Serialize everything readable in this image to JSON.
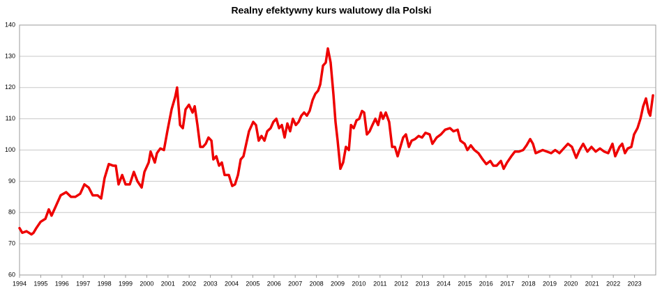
{
  "chart_data": {
    "type": "line",
    "title": "Realny efektywny kurs walutowy dla Polski",
    "xlim": [
      1994,
      2024
    ],
    "xticks": [
      1994,
      1995,
      1996,
      1997,
      1998,
      1999,
      2000,
      2001,
      2002,
      2003,
      2004,
      2005,
      2006,
      2007,
      2008,
      2009,
      2010,
      2011,
      2012,
      2013,
      2014,
      2015,
      2016,
      2017,
      2018,
      2019,
      2020,
      2021,
      2022,
      2023
    ],
    "ylim": [
      60,
      140
    ],
    "yticks": [
      60,
      70,
      80,
      90,
      100,
      110,
      120,
      130,
      140
    ],
    "grid": true,
    "series": [
      {
        "color": "#ee0000",
        "x": [
          1994.0,
          1994.13,
          1994.33,
          1994.56,
          1994.66,
          1994.79,
          1994.99,
          1995.22,
          1995.38,
          1995.51,
          1995.71,
          1995.94,
          1996.2,
          1996.43,
          1996.63,
          1996.86,
          1997.06,
          1997.26,
          1997.45,
          1997.68,
          1997.85,
          1998.01,
          1998.21,
          1998.41,
          1998.54,
          1998.67,
          1998.84,
          1999.0,
          1999.2,
          1999.39,
          1999.56,
          1999.76,
          1999.89,
          2000.09,
          2000.18,
          2000.38,
          2000.48,
          2000.64,
          2000.81,
          2000.97,
          2001.17,
          2001.34,
          2001.43,
          2001.57,
          2001.7,
          2001.83,
          2001.99,
          2002.16,
          2002.26,
          2002.39,
          2002.52,
          2002.65,
          2002.78,
          2002.91,
          2003.05,
          2003.14,
          2003.28,
          2003.41,
          2003.54,
          2003.67,
          2003.87,
          2004.03,
          2004.16,
          2004.3,
          2004.43,
          2004.56,
          2004.69,
          2004.82,
          2005.02,
          2005.15,
          2005.28,
          2005.41,
          2005.55,
          2005.68,
          2005.84,
          2005.97,
          2006.11,
          2006.24,
          2006.37,
          2006.5,
          2006.63,
          2006.76,
          2006.89,
          2007.03,
          2007.16,
          2007.29,
          2007.42,
          2007.55,
          2007.68,
          2007.82,
          2007.95,
          2008.08,
          2008.18,
          2008.31,
          2008.44,
          2008.54,
          2008.67,
          2008.8,
          2008.9,
          2009.0,
          2009.13,
          2009.26,
          2009.39,
          2009.53,
          2009.63,
          2009.76,
          2009.89,
          2010.02,
          2010.15,
          2010.25,
          2010.38,
          2010.51,
          2010.64,
          2010.78,
          2010.91,
          2011.04,
          2011.14,
          2011.27,
          2011.43,
          2011.57,
          2011.7,
          2011.83,
          2011.96,
          2012.09,
          2012.22,
          2012.36,
          2012.49,
          2012.65,
          2012.82,
          2012.98,
          2013.14,
          2013.34,
          2013.47,
          2013.67,
          2013.87,
          2014.07,
          2014.3,
          2014.46,
          2014.66,
          2014.79,
          2014.99,
          2015.12,
          2015.28,
          2015.45,
          2015.64,
          2015.84,
          2016.01,
          2016.2,
          2016.34,
          2016.5,
          2016.7,
          2016.83,
          2016.99,
          2017.19,
          2017.36,
          2017.55,
          2017.75,
          2017.91,
          2018.08,
          2018.21,
          2018.34,
          2018.51,
          2018.67,
          2018.87,
          2019.07,
          2019.26,
          2019.46,
          2019.66,
          2019.86,
          2020.05,
          2020.25,
          2020.41,
          2020.58,
          2020.78,
          2020.97,
          2021.17,
          2021.37,
          2021.57,
          2021.76,
          2021.96,
          2022.09,
          2022.29,
          2022.42,
          2022.55,
          2022.68,
          2022.85,
          2022.98,
          2023.14,
          2023.28,
          2023.41,
          2023.54,
          2023.67,
          2023.74,
          2023.87
        ],
        "values": [
          75,
          73.5,
          74,
          73,
          73.5,
          75,
          77,
          78,
          81,
          79,
          82,
          85.5,
          86.5,
          85,
          85,
          86,
          89,
          88,
          85.5,
          85.5,
          84.5,
          91,
          95.5,
          95,
          95,
          89,
          92,
          89,
          89,
          93,
          90,
          88,
          93,
          96,
          99.5,
          96,
          99,
          100.5,
          100,
          106,
          113,
          117,
          120,
          108,
          107,
          113,
          114.5,
          112,
          114,
          108,
          101,
          101,
          102,
          104,
          103,
          97,
          98,
          95,
          96,
          92,
          92,
          88.5,
          89,
          92,
          97,
          98,
          102,
          106,
          109,
          108,
          103,
          104.5,
          103,
          106,
          107,
          109,
          110,
          107,
          108,
          104,
          108.5,
          106,
          110,
          108,
          109,
          111,
          112,
          111,
          112.5,
          116,
          118,
          119,
          121,
          127,
          128,
          132.5,
          128,
          118,
          109,
          103,
          94,
          96,
          101,
          100,
          108,
          107,
          109.5,
          110,
          112.5,
          112,
          105,
          106,
          108,
          110,
          108,
          112,
          110,
          112,
          109,
          101,
          101,
          98,
          101,
          104,
          105,
          101,
          103,
          103.5,
          104.5,
          104,
          105.5,
          105,
          102,
          104,
          105,
          106.5,
          107,
          106,
          106.5,
          103,
          102,
          100,
          101.5,
          100,
          99,
          97,
          95.5,
          96.5,
          95,
          95,
          96.5,
          94,
          96,
          98,
          99.5,
          99.5,
          100,
          101.5,
          103.5,
          102,
          99,
          99.5,
          100,
          99.5,
          99,
          100,
          99,
          100.5,
          102,
          101,
          97.5,
          100,
          102,
          99.5,
          101,
          99.5,
          100.5,
          99.5,
          99,
          102,
          98,
          101,
          102,
          99,
          100.5,
          101,
          105,
          107,
          110,
          114,
          116.5,
          112,
          111,
          117.5
        ]
      }
    ]
  }
}
